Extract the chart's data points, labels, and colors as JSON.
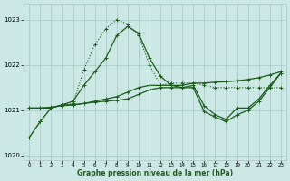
{
  "title": "Graphe pression niveau de la mer (hPa)",
  "bg_color": "#cce8e4",
  "grid_color": "#aaccca",
  "line_color": "#1a5c1a",
  "s1_x": [
    0,
    1,
    2,
    3,
    4,
    5,
    6,
    7,
    8,
    9,
    10,
    11,
    12,
    13,
    14,
    15,
    16,
    17,
    18,
    19,
    20,
    21,
    22,
    23
  ],
  "s1_y": [
    1020.4,
    1020.75,
    1021.05,
    1021.12,
    1021.15,
    1021.9,
    1022.45,
    1022.8,
    1023.0,
    1022.9,
    1022.65,
    1022.0,
    1021.55,
    1021.6,
    1021.6,
    1021.6,
    1021.55,
    1021.5,
    1021.5,
    1021.5,
    1021.5,
    1021.5,
    1021.5,
    1021.5
  ],
  "s1_style": "dotted",
  "s2_x": [
    0,
    1,
    2,
    3,
    4,
    5,
    6,
    7,
    8,
    9,
    10,
    11,
    12,
    13,
    14,
    15,
    16,
    17,
    18,
    19,
    20,
    21,
    22,
    23
  ],
  "s2_y": [
    1020.4,
    1020.75,
    1021.05,
    1021.12,
    1021.2,
    1021.55,
    1021.85,
    1022.15,
    1022.65,
    1022.85,
    1022.7,
    1022.15,
    1021.75,
    1021.55,
    1021.5,
    1021.55,
    1021.1,
    1020.9,
    1020.8,
    1021.05,
    1021.05,
    1021.25,
    1021.55,
    1021.82
  ],
  "s2_style": "solid",
  "s3_x": [
    0,
    1,
    2,
    3,
    4,
    5,
    6,
    7,
    8,
    9,
    10,
    11,
    12,
    13,
    14,
    15,
    16,
    17,
    18,
    19,
    20,
    21,
    22,
    23
  ],
  "s3_y": [
    1021.05,
    1021.05,
    1021.05,
    1021.12,
    1021.12,
    1021.15,
    1021.2,
    1021.25,
    1021.3,
    1021.4,
    1021.5,
    1021.55,
    1021.55,
    1021.55,
    1021.55,
    1021.6,
    1021.6,
    1021.62,
    1021.63,
    1021.65,
    1021.68,
    1021.72,
    1021.78,
    1021.85
  ],
  "s3_style": "solid",
  "s4_x": [
    0,
    1,
    2,
    3,
    4,
    5,
    6,
    7,
    8,
    9,
    10,
    11,
    12,
    13,
    14,
    15,
    16,
    17,
    18,
    19,
    20,
    21,
    22,
    23
  ],
  "s4_y": [
    1021.05,
    1021.05,
    1021.07,
    1021.1,
    1021.12,
    1021.15,
    1021.18,
    1021.2,
    1021.22,
    1021.25,
    1021.35,
    1021.45,
    1021.5,
    1021.5,
    1021.5,
    1021.5,
    1020.97,
    1020.85,
    1020.75,
    1020.9,
    1021.0,
    1021.2,
    1021.5,
    1021.82
  ],
  "s4_style": "solid",
  "ylim": [
    1019.9,
    1023.35
  ],
  "yticks": [
    1020,
    1021,
    1022,
    1023
  ],
  "xticks": [
    0,
    1,
    2,
    3,
    4,
    5,
    6,
    7,
    8,
    9,
    10,
    11,
    12,
    13,
    14,
    15,
    16,
    17,
    18,
    19,
    20,
    21,
    22,
    23
  ]
}
